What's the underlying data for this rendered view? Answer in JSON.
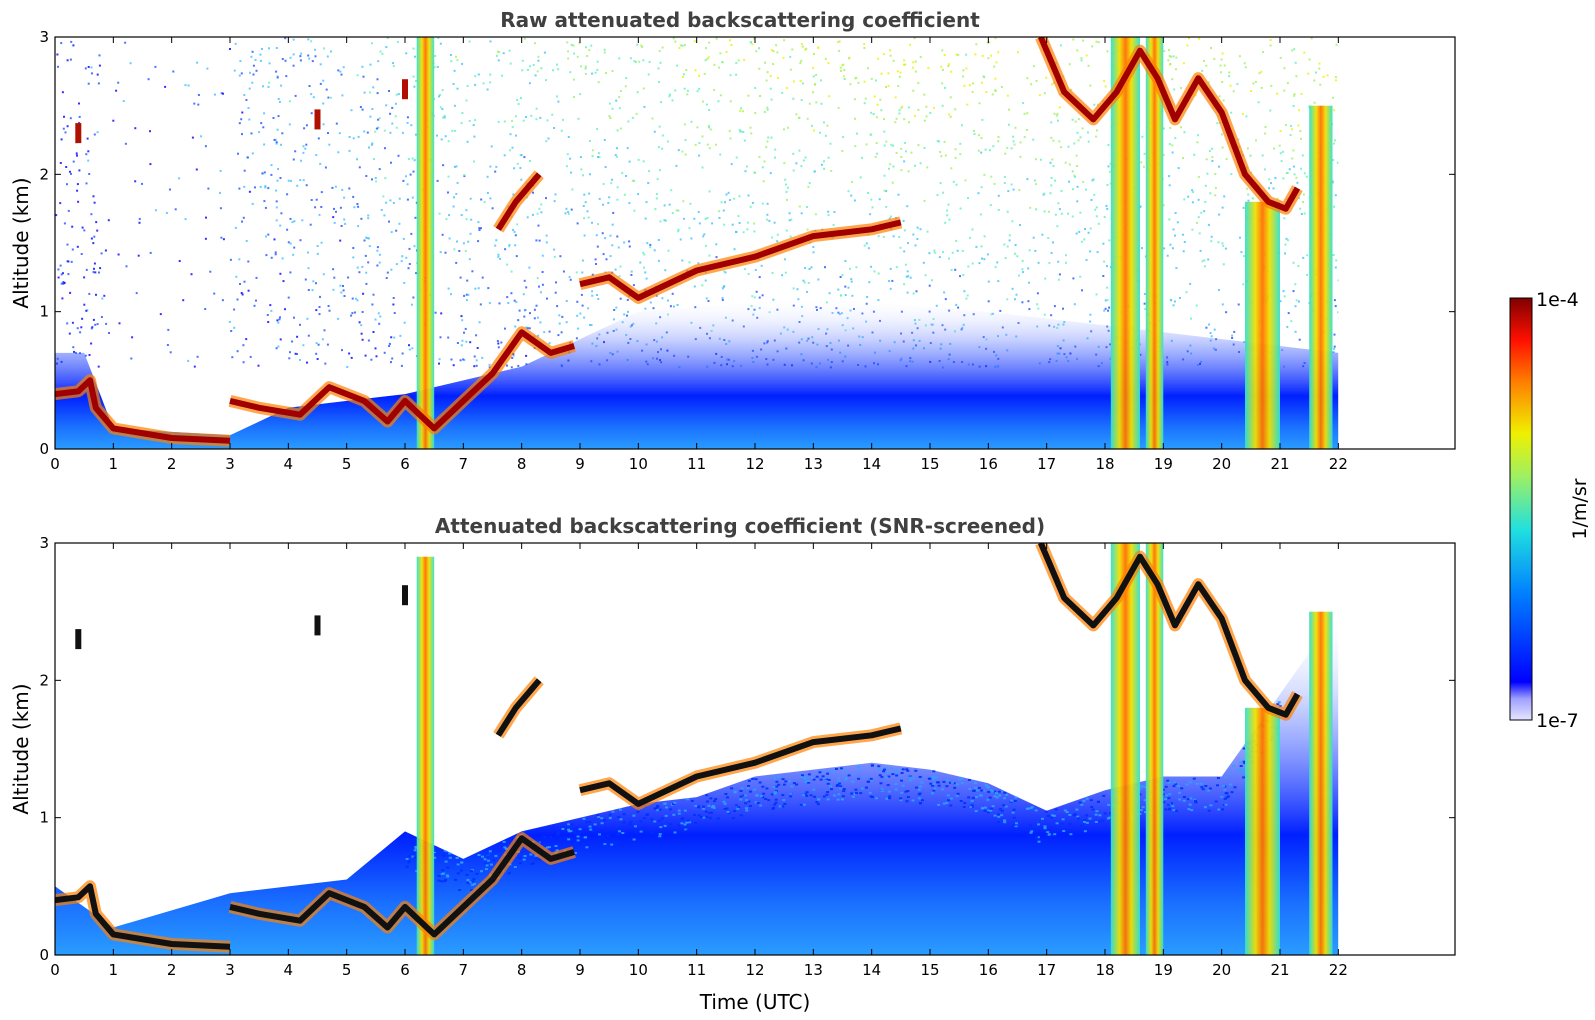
{
  "chart_data": [
    {
      "type": "heatmap",
      "title": "Raw attenuated backscattering coefficient",
      "xlabel": "",
      "ylabel": "Altitude (km)",
      "xlim": [
        0,
        24
      ],
      "ylim": [
        0,
        3
      ],
      "xticks": [
        0,
        1,
        2,
        3,
        4,
        5,
        6,
        7,
        8,
        9,
        10,
        11,
        12,
        13,
        14,
        15,
        16,
        17,
        18,
        19,
        20,
        21,
        22
      ],
      "yticks": [
        0,
        1,
        2,
        3
      ],
      "data_extent_hours": [
        0,
        22
      ],
      "screened": false,
      "layers": [
        {
          "kind": "surface_layer",
          "points": [
            [
              0.0,
              0.4
            ],
            [
              0.4,
              0.42
            ],
            [
              0.6,
              0.5
            ],
            [
              0.7,
              0.3
            ],
            [
              1.0,
              0.15
            ],
            [
              2.0,
              0.08
            ],
            [
              3.0,
              0.06
            ]
          ]
        },
        {
          "kind": "boundary_layer_top",
          "points": [
            [
              3.0,
              0.35
            ],
            [
              3.5,
              0.3
            ],
            [
              4.2,
              0.25
            ],
            [
              4.7,
              0.45
            ],
            [
              5.3,
              0.35
            ],
            [
              5.7,
              0.2
            ],
            [
              6.0,
              0.35
            ],
            [
              6.5,
              0.15
            ],
            [
              7.0,
              0.35
            ],
            [
              7.5,
              0.55
            ],
            [
              8.0,
              0.85
            ],
            [
              8.5,
              0.7
            ],
            [
              8.9,
              0.75
            ]
          ]
        },
        {
          "kind": "cloud",
          "points": [
            [
              9.0,
              1.2
            ],
            [
              9.5,
              1.25
            ],
            [
              10.0,
              1.1
            ],
            [
              11.0,
              1.3
            ],
            [
              12.0,
              1.4
            ],
            [
              13.0,
              1.55
            ],
            [
              14.0,
              1.6
            ],
            [
              14.5,
              1.65
            ]
          ]
        },
        {
          "kind": "cloud",
          "points": [
            [
              16.9,
              3.0
            ],
            [
              17.3,
              2.6
            ],
            [
              17.8,
              2.4
            ],
            [
              18.2,
              2.6
            ],
            [
              18.6,
              2.9
            ],
            [
              18.9,
              2.7
            ],
            [
              19.2,
              2.4
            ],
            [
              19.6,
              2.7
            ],
            [
              20.0,
              2.45
            ],
            [
              20.4,
              2.0
            ],
            [
              20.8,
              1.8
            ],
            [
              21.1,
              1.75
            ],
            [
              21.3,
              1.9
            ]
          ]
        },
        {
          "kind": "cloud",
          "points": [
            [
              7.6,
              1.6
            ],
            [
              7.9,
              1.8
            ],
            [
              8.3,
              2.0
            ]
          ]
        },
        {
          "kind": "cloud",
          "points": [
            [
              4.5,
              2.4
            ],
            [
              6.0,
              2.62
            ],
            [
              0.4,
              2.3
            ]
          ]
        }
      ],
      "columns": [
        [
          6.2,
          6.5
        ],
        [
          18.1,
          18.6
        ],
        [
          18.7,
          19.0
        ],
        [
          20.4,
          21.0
        ],
        [
          21.5,
          21.9
        ]
      ]
    },
    {
      "type": "heatmap",
      "title": "Attenuated backscattering coefficient (SNR-screened)",
      "xlabel": "Time (UTC)",
      "ylabel": "Altitude (km)",
      "xlim": [
        0,
        24
      ],
      "ylim": [
        0,
        3
      ],
      "xticks": [
        0,
        1,
        2,
        3,
        4,
        5,
        6,
        7,
        8,
        9,
        10,
        11,
        12,
        13,
        14,
        15,
        16,
        17,
        18,
        19,
        20,
        21,
        22
      ],
      "yticks": [
        0,
        1,
        2,
        3
      ],
      "data_extent_hours": [
        0,
        22
      ],
      "screened": true,
      "screen_top_points": [
        [
          0,
          0.5
        ],
        [
          1,
          0.2
        ],
        [
          3,
          0.45
        ],
        [
          5,
          0.55
        ],
        [
          6,
          0.9
        ],
        [
          7,
          0.7
        ],
        [
          8,
          0.9
        ],
        [
          9,
          1.0
        ],
        [
          10,
          1.1
        ],
        [
          11,
          1.15
        ],
        [
          12,
          1.3
        ],
        [
          13,
          1.35
        ],
        [
          14,
          1.4
        ],
        [
          15,
          1.35
        ],
        [
          16,
          1.25
        ],
        [
          17,
          1.05
        ],
        [
          18,
          1.2
        ],
        [
          19,
          1.3
        ],
        [
          20,
          1.3
        ],
        [
          21,
          1.9
        ],
        [
          22,
          2.5
        ]
      ]
    }
  ],
  "colorbar": {
    "label": "1/m/sr",
    "min_label": "1e-7",
    "max_label": "1e-4",
    "colors": [
      "#e6e6ff",
      "#0000ff",
      "#00a0ff",
      "#30f0d0",
      "#f0f000",
      "#ff8000",
      "#ff0000",
      "#800000"
    ]
  }
}
